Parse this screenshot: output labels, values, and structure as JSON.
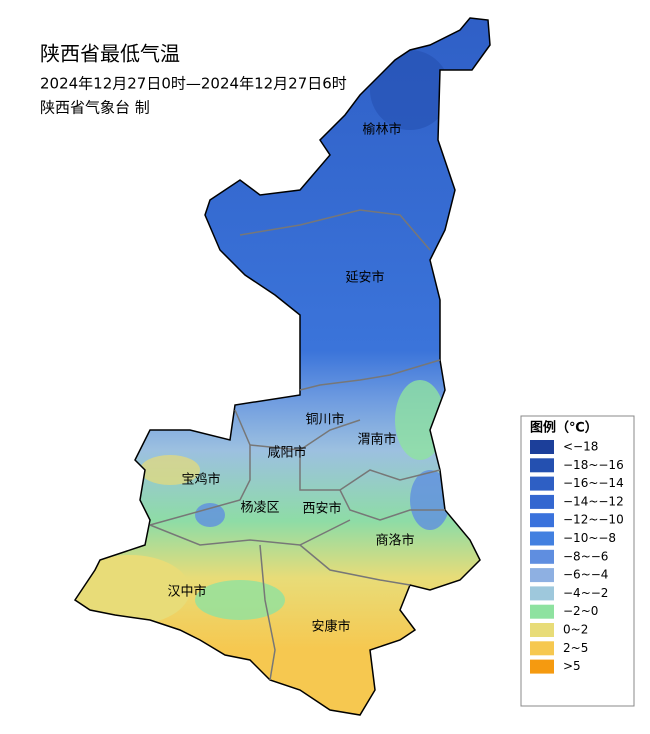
{
  "header": {
    "title": "陕西省最低气温",
    "period": "2024年12月27日0时—2024年12月27日6时",
    "issuer": "陕西省气象台 制"
  },
  "cities": [
    {
      "label": "榆林市"
    },
    {
      "label": "延安市"
    },
    {
      "label": "铜川市"
    },
    {
      "label": "渭南市"
    },
    {
      "label": "咸阳市"
    },
    {
      "label": "宝鸡市"
    },
    {
      "label": "杨凌区"
    },
    {
      "label": "西安市"
    },
    {
      "label": "商洛市"
    },
    {
      "label": "汉中市"
    },
    {
      "label": "安康市"
    }
  ],
  "legend": {
    "title": "图例（℃）",
    "items": [
      {
        "label": "<−18",
        "color": "#1c3f9a"
      },
      {
        "label": "−18~−16",
        "color": "#2450b0"
      },
      {
        "label": "−16~−14",
        "color": "#2e5fc4"
      },
      {
        "label": "−14~−12",
        "color": "#3467d0"
      },
      {
        "label": "−12~−10",
        "color": "#3a72dc"
      },
      {
        "label": "−10~−8",
        "color": "#4280e0"
      },
      {
        "label": "−8~−6",
        "color": "#5f8ee0"
      },
      {
        "label": "−6~−4",
        "color": "#8eb0e2"
      },
      {
        "label": "−4~−2",
        "color": "#9ec8dc"
      },
      {
        "label": "−2~0",
        "color": "#8ee2a0"
      },
      {
        "label": "0~2",
        "color": "#e8dc78"
      },
      {
        "label": "2~5",
        "color": "#f6c850"
      },
      {
        "label": ">5",
        "color": "#f59a10"
      }
    ]
  }
}
